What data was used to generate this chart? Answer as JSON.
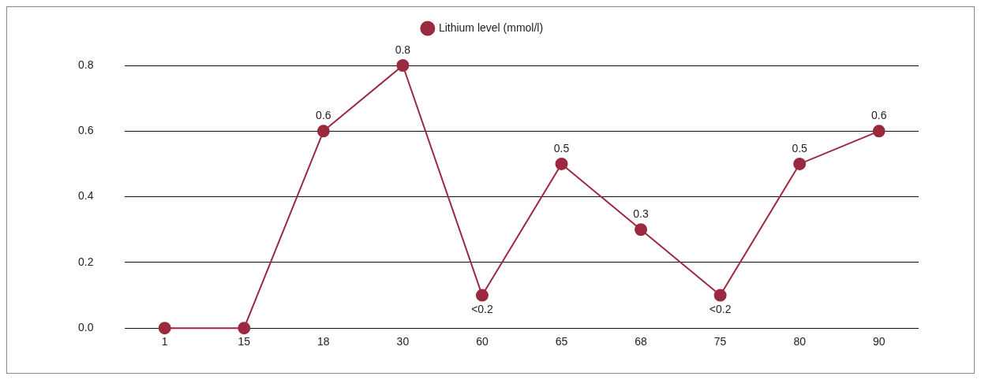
{
  "chart_data": {
    "type": "line",
    "categories": [
      "1",
      "15",
      "18",
      "30",
      "60",
      "65",
      "68",
      "75",
      "80",
      "90"
    ],
    "series": [
      {
        "name": "Lithium level (mmol/l)",
        "color": "#9b2940",
        "values": [
          0,
          0,
          0.6,
          0.8,
          0.1,
          0.5,
          0.3,
          0.1,
          0.5,
          0.6
        ],
        "value_labels": [
          null,
          null,
          "0.6",
          "0.8",
          "<0.2",
          "0.5",
          "0.3",
          "<0.2",
          "0.5",
          "0.6"
        ]
      }
    ],
    "ylim": [
      0,
      0.8
    ],
    "yticks": [
      {
        "value": 0,
        "label": "0.0"
      },
      {
        "value": 0.2,
        "label": "0.2"
      },
      {
        "value": 0.4,
        "label": "0.4"
      },
      {
        "value": 0.6,
        "label": "0.6"
      },
      {
        "value": 0.8,
        "label": "0.8"
      }
    ],
    "grid": "y",
    "legend": "top",
    "marker": "circle",
    "line_style": "solid"
  }
}
